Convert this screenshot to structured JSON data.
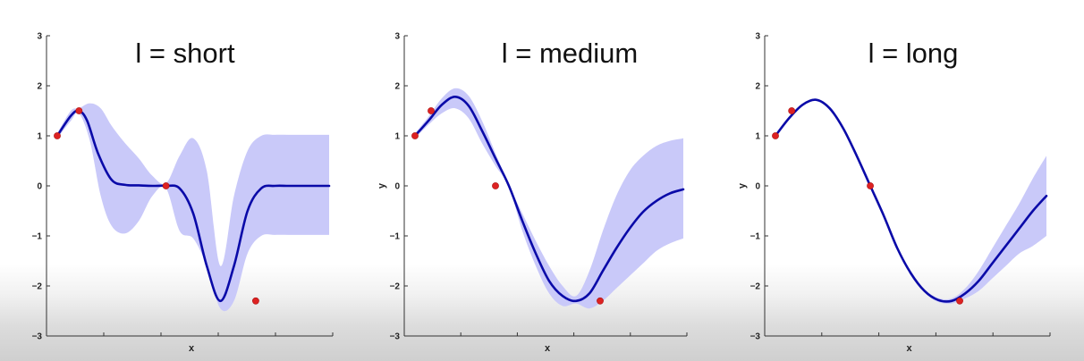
{
  "chart_data": [
    {
      "type": "line",
      "title": "l = short",
      "xlabel": "x",
      "ylabel": "",
      "ylim": [
        -3,
        3
      ],
      "yticks": [
        -3,
        -2,
        -1,
        0,
        1,
        2,
        3
      ],
      "xlim": [
        0,
        10
      ],
      "series": [
        {
          "kind": "mean",
          "x": [
            0,
            0.5,
            0.8,
            1.1,
            1.5,
            2,
            2.5,
            3,
            3.5,
            4,
            4.5,
            5,
            5.5,
            6,
            6.5,
            7,
            7.5,
            8,
            8.5,
            9,
            9.5,
            10
          ],
          "y": [
            1,
            1.4,
            1.5,
            1.3,
            0.65,
            0.12,
            0.02,
            0.01,
            0.0,
            0.0,
            -0.05,
            -0.55,
            -1.6,
            -2.3,
            -1.6,
            -0.5,
            -0.05,
            0,
            0,
            0,
            0,
            0
          ]
        },
        {
          "kind": "band",
          "x": [
            0,
            0.5,
            0.8,
            1.2,
            1.6,
            2,
            2.5,
            3,
            3.5,
            4,
            4.5,
            5,
            5.5,
            6,
            6.5,
            7,
            7.5,
            8,
            8.5,
            9,
            9.5,
            10
          ],
          "upper": [
            1.05,
            1.5,
            1.55,
            1.65,
            1.55,
            1.2,
            0.85,
            0.55,
            0.2,
            0.05,
            0.6,
            0.95,
            0.3,
            -1.6,
            -0.2,
            0.7,
            1.0,
            1.02,
            1.02,
            1.02,
            1.02,
            1.02
          ],
          "lower": [
            0.95,
            1.3,
            1.45,
            0.9,
            -0.2,
            -0.8,
            -0.95,
            -0.7,
            -0.2,
            -0.05,
            -0.9,
            -1.05,
            -1.6,
            -2.45,
            -2.3,
            -1.35,
            -1.0,
            -0.98,
            -0.98,
            -0.98,
            -0.98,
            -0.98
          ]
        }
      ],
      "observations": {
        "x": [
          0.0,
          0.8,
          4.0,
          7.3
        ],
        "y": [
          1,
          1.5,
          0,
          -2.3
        ]
      }
    },
    {
      "type": "line",
      "title": "l = medium",
      "xlabel": "x",
      "ylabel": "y",
      "ylim": [
        -3,
        3
      ],
      "yticks": [
        -3,
        -2,
        -1,
        0,
        1,
        2,
        3
      ],
      "xlim": [
        0,
        10
      ],
      "series": [
        {
          "kind": "mean",
          "x": [
            0,
            0.5,
            1,
            1.5,
            2,
            2.5,
            3,
            3.5,
            4,
            4.5,
            5,
            5.5,
            6,
            6.5,
            7,
            7.5,
            8,
            8.5,
            9,
            9.5,
            10
          ],
          "y": [
            1,
            1.3,
            1.62,
            1.78,
            1.6,
            1.1,
            0.55,
            0.0,
            -0.7,
            -1.35,
            -1.9,
            -2.2,
            -2.3,
            -2.15,
            -1.7,
            -1.25,
            -0.85,
            -0.52,
            -0.3,
            -0.15,
            -0.07
          ]
        },
        {
          "kind": "band",
          "x": [
            0,
            0.5,
            1,
            1.5,
            2,
            2.5,
            3,
            3.5,
            4,
            4.5,
            5,
            5.5,
            6,
            6.5,
            7,
            7.5,
            8,
            8.5,
            9,
            9.5,
            10
          ],
          "upper": [
            1.05,
            1.38,
            1.75,
            1.95,
            1.8,
            1.3,
            0.65,
            0.02,
            -0.55,
            -1.1,
            -1.6,
            -2.0,
            -2.2,
            -1.7,
            -0.9,
            -0.2,
            0.3,
            0.6,
            0.8,
            0.9,
            0.95
          ],
          "lower": [
            0.95,
            1.22,
            1.45,
            1.55,
            1.35,
            0.85,
            0.4,
            -0.02,
            -0.9,
            -1.6,
            -2.15,
            -2.4,
            -2.35,
            -2.45,
            -2.3,
            -2.05,
            -1.8,
            -1.55,
            -1.3,
            -1.15,
            -1.05
          ]
        }
      ],
      "observations": {
        "x": [
          0.0,
          0.6,
          3.0,
          6.9
        ],
        "y": [
          1,
          1.5,
          0,
          -2.3
        ]
      }
    },
    {
      "type": "line",
      "title": "l = long",
      "xlabel": "x",
      "ylabel": "y",
      "ylim": [
        -3,
        3
      ],
      "yticks": [
        -3,
        -2,
        -1,
        0,
        1,
        2,
        3
      ],
      "xlim": [
        0,
        10
      ],
      "series": [
        {
          "kind": "mean",
          "x": [
            0,
            0.5,
            1,
            1.5,
            2,
            2.5,
            3,
            3.5,
            4,
            4.5,
            5,
            5.5,
            6,
            6.5,
            7,
            7.5,
            8,
            8.5,
            9,
            9.5,
            10
          ],
          "y": [
            1,
            1.35,
            1.62,
            1.72,
            1.55,
            1.15,
            0.6,
            0.0,
            -0.6,
            -1.25,
            -1.75,
            -2.1,
            -2.28,
            -2.3,
            -2.15,
            -1.9,
            -1.55,
            -1.2,
            -0.85,
            -0.5,
            -0.2
          ]
        },
        {
          "kind": "band",
          "x": [
            0,
            0.5,
            1,
            1.5,
            2,
            2.5,
            3,
            3.5,
            4,
            4.5,
            5,
            5.5,
            6,
            6.5,
            7,
            7.5,
            8,
            8.5,
            9,
            9.5,
            10
          ],
          "upper": [
            1.02,
            1.37,
            1.64,
            1.74,
            1.57,
            1.17,
            0.62,
            0.01,
            -0.58,
            -1.22,
            -1.72,
            -2.07,
            -2.24,
            -2.25,
            -2.05,
            -1.7,
            -1.25,
            -0.8,
            -0.35,
            0.15,
            0.6
          ],
          "lower": [
            0.98,
            1.33,
            1.6,
            1.7,
            1.53,
            1.13,
            0.58,
            -0.01,
            -0.62,
            -1.28,
            -1.78,
            -2.13,
            -2.32,
            -2.35,
            -2.25,
            -2.1,
            -1.85,
            -1.6,
            -1.35,
            -1.2,
            -1.0
          ]
        }
      ],
      "observations": {
        "x": [
          0.0,
          0.6,
          3.5,
          6.8
        ],
        "y": [
          1,
          1.5,
          0,
          -2.3
        ]
      }
    }
  ],
  "colors": {
    "mean": "#0a0aa8",
    "band": "#c9c9f9",
    "point": "#dd2222",
    "axis": "#333333"
  }
}
